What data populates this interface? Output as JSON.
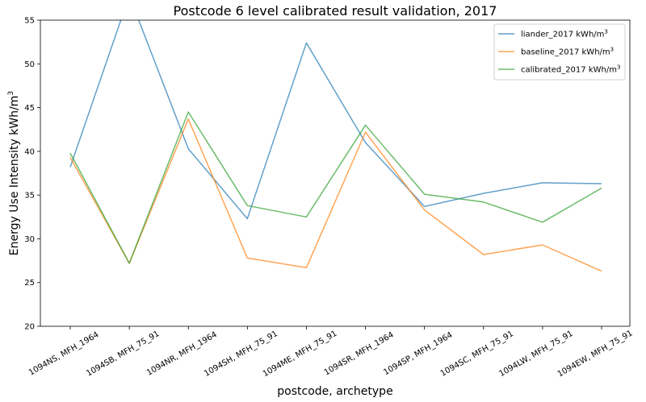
{
  "chart_data": {
    "type": "line",
    "title": "Postcode 6 level calibrated result validation, 2017",
    "xlabel": "postcode, archetype",
    "ylabel_prefix": "Energy Use Intensity kWh/m",
    "ylabel_sup": "3",
    "categories": [
      "1094NS, MFH_1964",
      "1094SB, MFH_75_91",
      "1094NR, MFH_1964",
      "1094SH, MFH_75_91",
      "1094ME, MFH_75_91",
      "1094SR, MFH_1964",
      "1094SP, MFH_1964",
      "1094SC, MFH_75_91",
      "1094LW, MFH_75_91",
      "1094EW, MFH_75_91"
    ],
    "ylim": [
      20,
      55
    ],
    "yticks": [
      "20",
      "25",
      "30",
      "35",
      "40",
      "45",
      "50",
      "55"
    ],
    "grid": false,
    "legend_position": "top-right",
    "series": [
      {
        "name": "liander_2017 kWh/m",
        "name_sup": "3",
        "color": "#1f77b4",
        "values": [
          38.2,
          57.8,
          40.3,
          32.3,
          52.4,
          41.0,
          33.7,
          35.2,
          36.4,
          36.3
        ]
      },
      {
        "name": "baseline_2017 kWh/m",
        "name_sup": "3",
        "color": "#ff7f0e",
        "values": [
          39.3,
          27.2,
          43.7,
          27.8,
          26.7,
          42.2,
          33.3,
          28.2,
          29.3,
          26.3
        ]
      },
      {
        "name": "calibrated_2017 kWh/m",
        "name_sup": "3",
        "color": "#2ca02c",
        "values": [
          39.8,
          27.2,
          44.5,
          33.8,
          32.5,
          43.0,
          35.1,
          34.2,
          31.9,
          35.8
        ]
      }
    ]
  }
}
